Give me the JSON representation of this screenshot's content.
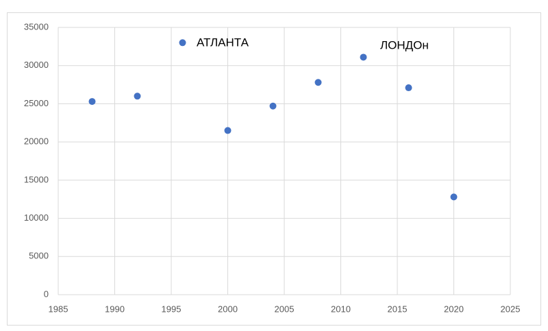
{
  "chart_data": {
    "type": "scatter",
    "x": [
      1988,
      1992,
      1996,
      2000,
      2004,
      2008,
      2012,
      2016,
      2020
    ],
    "values": [
      25300,
      26000,
      33000,
      21500,
      24700,
      27800,
      31100,
      27100,
      12800
    ],
    "color": "#4472c4",
    "xlim": [
      1985,
      2025
    ],
    "xticks": [
      1985,
      1990,
      1995,
      2000,
      2005,
      2010,
      2015,
      2020,
      2025
    ],
    "ylim": [
      0,
      35000
    ],
    "yticks": [
      0,
      5000,
      10000,
      15000,
      20000,
      25000,
      30000,
      35000
    ],
    "grid": true,
    "annotations": [
      "АТЛАНТА",
      "ЛОНДОн"
    ]
  }
}
